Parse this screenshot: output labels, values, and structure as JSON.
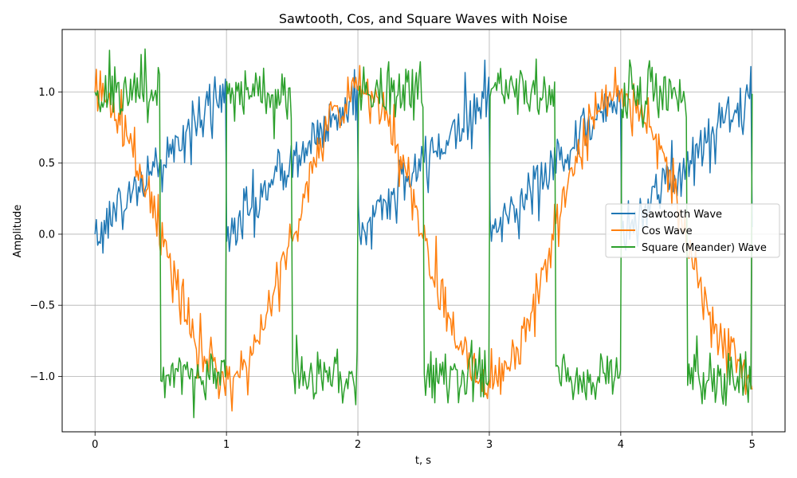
{
  "chart_data": {
    "type": "line",
    "title": "Sawtooth, Cos, and Square Waves with Noise",
    "xlabel": "t, s",
    "ylabel": "Amplitude",
    "xlim": [
      -0.25,
      5.25
    ],
    "ylim": [
      -1.39,
      1.44
    ],
    "xticks": [
      0,
      1,
      2,
      3,
      4,
      5
    ],
    "xtick_labels": [
      "0",
      "1",
      "2",
      "3",
      "4",
      "5"
    ],
    "yticks": [
      -1.0,
      -0.5,
      0.0,
      0.5,
      1.0
    ],
    "ytick_labels": [
      "−1.0",
      "−0.5",
      "0.0",
      "0.5",
      "1.0"
    ],
    "grid": true,
    "legend_position": "center-right",
    "x_start": 0,
    "x_end": 5,
    "sample_count": 500,
    "noise_amplitude": 0.1,
    "series": [
      {
        "name": "Sawtooth Wave",
        "color": "#1f77b4",
        "waveform": "sawtooth",
        "period": 1,
        "min": 0,
        "max": 1
      },
      {
        "name": "Cos Wave",
        "color": "#ff7f0e",
        "waveform": "cosine",
        "period": 2,
        "min": -1,
        "max": 1
      },
      {
        "name": "Square (Meander) Wave",
        "color": "#2ca02c",
        "waveform": "square",
        "period": 1,
        "min": -1,
        "max": 1
      }
    ]
  }
}
